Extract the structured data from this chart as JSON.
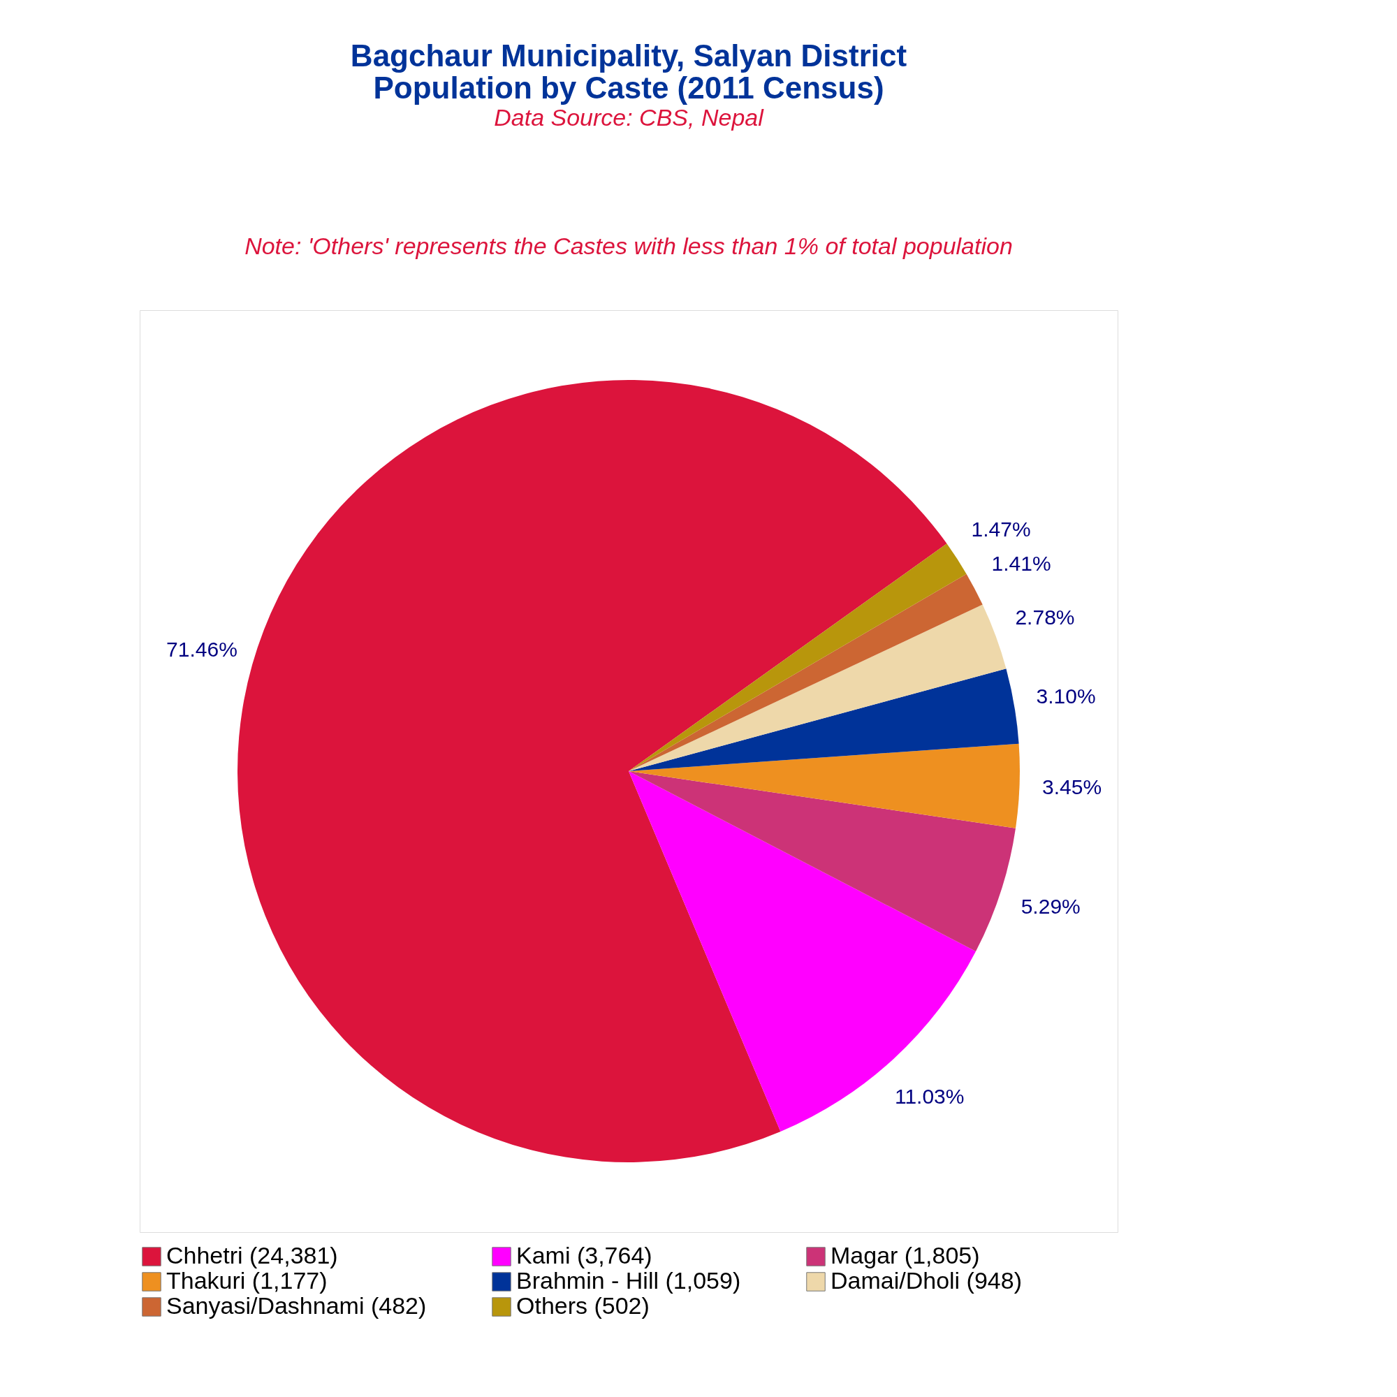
{
  "chart_data": {
    "type": "pie",
    "title": [
      "Bagchaur Municipality, Salyan District",
      "Population by Caste (2011 Census)"
    ],
    "subtitle": "Data Source: CBS, Nepal",
    "annotations": [
      "Note: 'Others' represents the Castes with less than 1% of total population"
    ],
    "categories": [
      "Chhetri (24,381)",
      "Kami (3,764)",
      "Magar (1,805)",
      "Thakuri (1,177)",
      "Brahmin - Hill (1,059)",
      "Damai/Dholi (948)",
      "Sanyasi/Dashnami (482)",
      "Others (502)"
    ],
    "values": [
      71.46,
      11.03,
      5.29,
      3.45,
      3.1,
      2.78,
      1.41,
      1.47
    ],
    "value_labels": [
      "71.46%",
      "11.03%",
      "5.29%",
      "3.45%",
      "3.10%",
      "2.78%",
      "1.41%",
      "1.47%"
    ],
    "colors": [
      "#dc143c",
      "#ff00ff",
      "#cc3377",
      "#ee9020",
      "#003399",
      "#eed8aa",
      "#cc6633",
      "#b8960c"
    ],
    "legend": "bottom"
  }
}
